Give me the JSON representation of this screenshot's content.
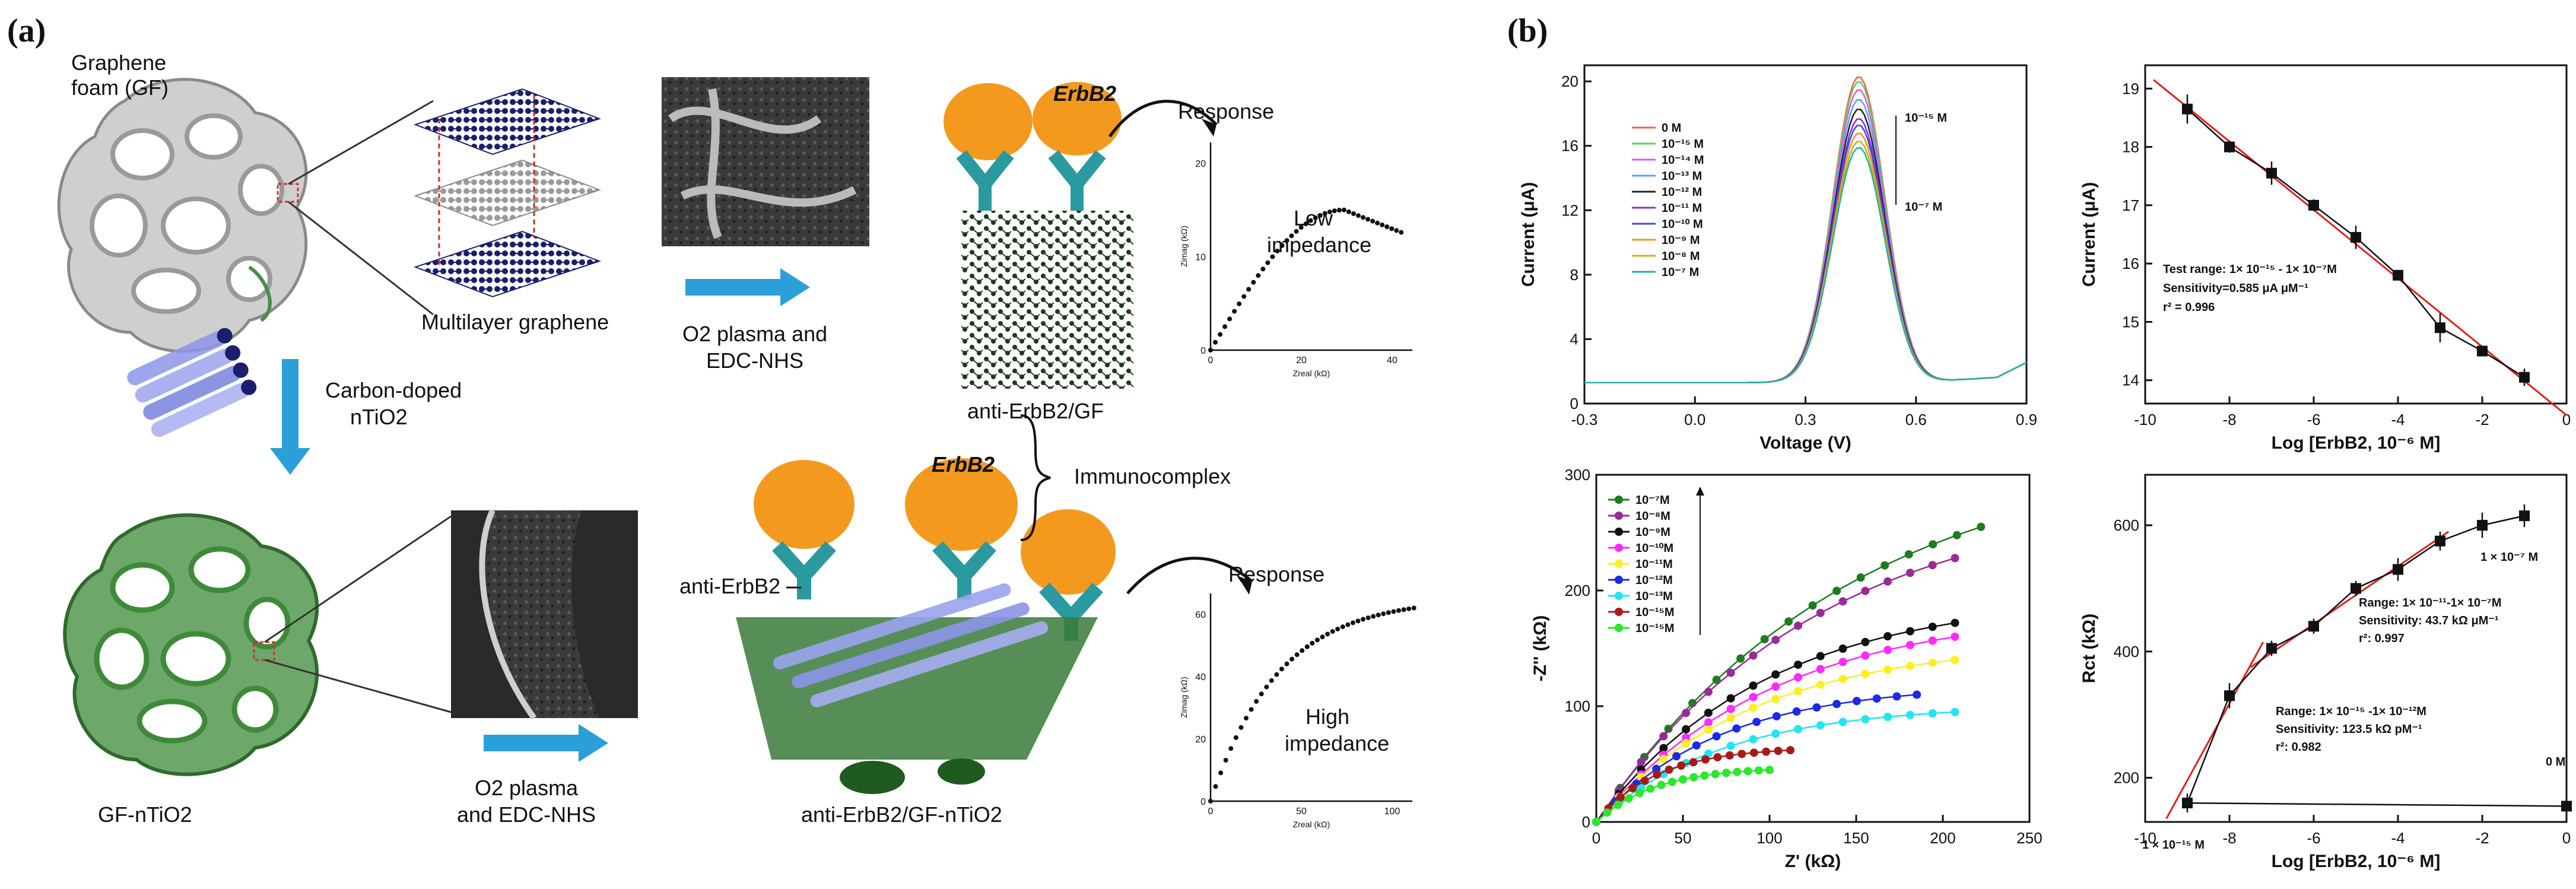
{
  "panel_a": {
    "panel_label": "(a)",
    "gf_label_line1": "Graphene",
    "gf_label_line2": "foam (GF)",
    "multilayer_label": "Multilayer graphene",
    "o2_plasma_1_line1": "O2 plasma and",
    "o2_plasma_1_line2": "EDC-NHS",
    "erbb2_top": "ErbB2",
    "response_top": "Response",
    "low_line1": "Low",
    "low_line2": "impedance",
    "anti_gf": "anti-ErbB2/GF",
    "carbon_line1": "Carbon-doped",
    "carbon_line2": "nTiO2",
    "gf_ntio2": "GF-nTiO2",
    "o2_plasma_2_line1": "O2 plasma",
    "o2_plasma_2_line2": "and EDC-NHS",
    "anti_erbb2": "anti-ErbB2",
    "erbb2_bottom": "ErbB2",
    "immunocomplex": "Immunocomplex",
    "response_bottom": "Response",
    "high_line1": "High",
    "high_line2": "impedance",
    "anti_gf_ntio2": "anti-ErbB2/GF-nTiO2",
    "inset_top": {
      "xticks": [
        "0",
        "20",
        "40"
      ],
      "yticks": [
        "0",
        "10",
        "20"
      ],
      "xlabel": "Zreal (kΩ)",
      "ylabel": "Zimag (kΩ)"
    },
    "inset_bottom": {
      "xticks": [
        "0",
        "50",
        "100"
      ],
      "yticks": [
        "0",
        "20",
        "40",
        "60"
      ],
      "xlabel": "Zreal (kΩ)",
      "ylabel": "Zimag (kΩ)"
    }
  },
  "panel_b": {
    "panel_label": "(b)"
  },
  "colors": {
    "arrow": "#2a9fd8",
    "fit_line": "#e02020",
    "foam_gray": "#a8a8a8",
    "foam_green": "#3e8a3a",
    "protein_orange": "#f39a1e",
    "antibody_teal": "#2a9aa0"
  },
  "chart_data": [
    {
      "id": "dpv",
      "type": "line",
      "xlabel": "Voltage (V)",
      "ylabel": "Current (μA)",
      "xlim": [
        -0.3,
        0.9
      ],
      "ylim": [
        0,
        21
      ],
      "xticks": [
        -0.3,
        0.0,
        0.3,
        0.6,
        0.9
      ],
      "xtick_labels": [
        "-0.3",
        "0.0",
        "0.3",
        "0.6",
        "0.9"
      ],
      "yticks": [
        0,
        4,
        8,
        12,
        16,
        20
      ],
      "ytick_labels": [
        "0",
        "4",
        "8",
        "12",
        "16",
        "20"
      ],
      "annotation_top": "10⁻¹⁵ M",
      "annotation_bottom": "10⁻⁷ M",
      "legend_position": "top-left",
      "series": [
        {
          "name": "0 M",
          "color": "#ff5a5a",
          "peak": 19.0
        },
        {
          "name": "10⁻¹⁵ M",
          "color": "#55d655",
          "peak": 18.7
        },
        {
          "name": "10⁻¹⁴ M",
          "color": "#e05ad8",
          "peak": 18.2
        },
        {
          "name": "10⁻¹³ M",
          "color": "#5aa0ff",
          "peak": 17.6
        },
        {
          "name": "10⁻¹² M",
          "color": "#222222",
          "peak": 17.0
        },
        {
          "name": "10⁻¹¹ M",
          "color": "#8a2be2",
          "peak": 16.4
        },
        {
          "name": "10⁻¹⁰ M",
          "color": "#3a4bd8",
          "peak": 16.0
        },
        {
          "name": "10⁻⁹ M",
          "color": "#ff8c1a",
          "peak": 15.5
        },
        {
          "name": "10⁻⁸ M",
          "color": "#b8b81a",
          "peak": 15.0
        },
        {
          "name": "10⁻⁷ M",
          "color": "#20b2aa",
          "peak": 14.6
        }
      ]
    },
    {
      "id": "calib_dpv",
      "type": "scatter",
      "xlabel": "Log [ErbB2, 10⁻⁶ M]",
      "ylabel": "Current (μA)",
      "xlim": [
        -10,
        0
      ],
      "ylim": [
        13.6,
        19.4
      ],
      "xticks": [
        -10,
        -8,
        -6,
        -4,
        -2,
        0
      ],
      "yticks": [
        14,
        15,
        16,
        17,
        18,
        19
      ],
      "x": [
        -9,
        -8,
        -7,
        -6,
        -5,
        -4,
        -3,
        -2,
        -1
      ],
      "y": [
        18.65,
        18.0,
        17.55,
        17.0,
        16.45,
        15.8,
        14.9,
        14.5,
        14.05
      ],
      "err": [
        0.25,
        0.1,
        0.2,
        0.1,
        0.2,
        0.08,
        0.25,
        0.05,
        0.15
      ],
      "fit": {
        "x": [
          -9.8,
          0
        ],
        "y": [
          19.15,
          13.4
        ]
      },
      "annotation": [
        "Test range: 1× 10⁻¹⁵ - 1× 10⁻⁷M",
        "Sensitivity=0.585 μA μM⁻¹",
        "r² = 0.996"
      ]
    },
    {
      "id": "nyquist",
      "type": "line",
      "xlabel": "Z' (kΩ)",
      "ylabel": "-Z'' (kΩ)",
      "xlim": [
        0,
        250
      ],
      "ylim": [
        0,
        300
      ],
      "xticks": [
        0,
        50,
        100,
        150,
        200,
        250
      ],
      "yticks": [
        0,
        100,
        200,
        300
      ],
      "legend_position": "top-left",
      "series": [
        {
          "name": "10⁻⁷M",
          "color": "#1e7b1e",
          "end": [
            222,
            255
          ],
          "k": 1.5
        },
        {
          "name": "10⁻⁸M",
          "color": "#9a2a9a",
          "end": [
            207,
            228
          ],
          "k": 1.6
        },
        {
          "name": "10⁻⁹M",
          "color": "#111111",
          "end": [
            207,
            172
          ],
          "k": 2.1
        },
        {
          "name": "10⁻¹⁰M",
          "color": "#ff2aff",
          "end": [
            207,
            160
          ],
          "k": 2.0
        },
        {
          "name": "10⁻¹¹M",
          "color": "#ffee22",
          "end": [
            207,
            140
          ],
          "k": 2.3
        },
        {
          "name": "10⁻¹²M",
          "color": "#1a2ae8",
          "end": [
            185,
            110
          ],
          "k": 2.6
        },
        {
          "name": "10⁻¹³M",
          "color": "#22e5f0",
          "end": [
            207,
            95
          ],
          "k": 2.8
        },
        {
          "name": "10⁻¹⁵M",
          "color": "#a81a1a",
          "end": [
            112,
            62
          ],
          "k": 3.2
        },
        {
          "name": "10⁻¹⁵M",
          "color": "#2ae82a",
          "end": [
            100,
            45
          ],
          "k": 3.0
        }
      ]
    },
    {
      "id": "calib_eis",
      "type": "scatter",
      "xlabel": "Log [ErbB2, 10⁻⁶ M]",
      "ylabel": "Rct (kΩ)",
      "xlim": [
        -10,
        0
      ],
      "ylim": [
        130,
        680
      ],
      "xticks": [
        -10,
        -8,
        -6,
        -4,
        -2,
        0
      ],
      "yticks": [
        200,
        400,
        600
      ],
      "x": [
        -9,
        -8,
        -7,
        -6,
        -5,
        -4,
        -3,
        -2,
        -1
      ],
      "y": [
        160,
        330,
        405,
        440,
        500,
        530,
        575,
        600,
        615
      ],
      "err": [
        15,
        20,
        12,
        12,
        12,
        18,
        15,
        20,
        18
      ],
      "zero_point": {
        "x": 0,
        "y": 155,
        "err": 12
      },
      "fit_low": {
        "x": [
          -9.5,
          -7.2
        ],
        "y": [
          135,
          415
        ]
      },
      "fit_high": {
        "x": [
          -7.5,
          -2.8
        ],
        "y": [
          375,
          590
        ]
      },
      "annotation_high": [
        "Range: 1× 10⁻¹¹-1× 10⁻⁷M",
        "Sensitivity: 43.7 kΩ μM⁻¹",
        "r²: 0.997"
      ],
      "annotation_low": [
        "Range: 1× 10⁻¹⁵ -1× 10⁻¹²M",
        "Sensitivity: 123.5 kΩ pM⁻¹",
        "r²: 0.982"
      ],
      "point_label_top": "1 × 10⁻⁷ M",
      "point_label_bottom": "1 × 10⁻¹⁵ M",
      "point_label_zero": "0 M"
    }
  ]
}
